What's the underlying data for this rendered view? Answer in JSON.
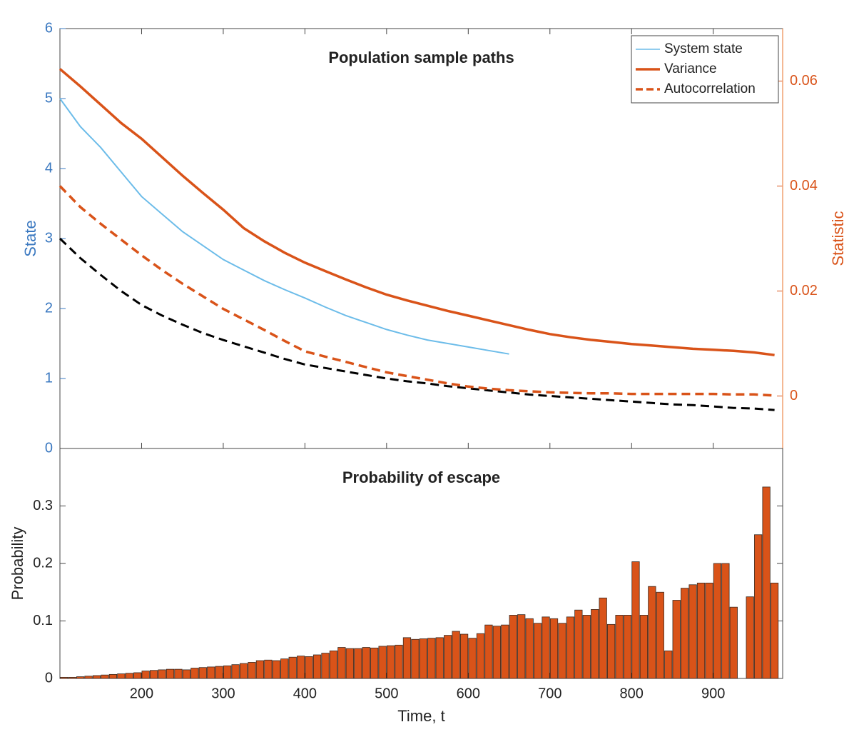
{
  "chart_data": [
    {
      "type": "line",
      "title": "Population sample paths",
      "ylabel": "State",
      "y2label": "Statistic",
      "x": [
        100,
        125,
        150,
        175,
        200,
        225,
        250,
        275,
        300,
        325,
        350,
        375,
        400,
        425,
        450,
        475,
        500,
        525,
        550,
        575,
        600,
        625,
        650,
        675,
        700,
        725,
        750,
        775,
        800,
        825,
        850,
        875,
        900,
        925,
        950,
        975
      ],
      "xlim": [
        100,
        985
      ],
      "ylim": [
        0,
        6
      ],
      "yticks": [
        0,
        1,
        2,
        3,
        4,
        5,
        6
      ],
      "y2lim": [
        -0.01,
        0.07
      ],
      "y2ticks": [
        0,
        0.02,
        0.04,
        0.06
      ],
      "legend": "upper right",
      "series": [
        {
          "name": "System state",
          "color": "#6cbce9",
          "axis": "y",
          "style": "solid",
          "values": [
            5.0,
            4.6,
            4.3,
            3.95,
            3.6,
            3.35,
            3.1,
            2.9,
            2.7,
            2.55,
            2.4,
            2.27,
            2.15,
            2.02,
            1.9,
            1.8,
            1.7,
            1.62,
            1.55,
            1.5,
            1.45,
            1.4,
            1.35,
            null,
            null,
            null,
            null,
            null,
            null,
            null,
            null,
            null,
            null,
            null,
            null,
            null
          ]
        },
        {
          "name": "Variance",
          "color": "#d95319",
          "axis": "y2",
          "style": "solid",
          "values": [
            0.0623,
            0.059,
            0.0555,
            0.052,
            0.049,
            0.0455,
            0.042,
            0.0387,
            0.0355,
            0.032,
            0.0295,
            0.0273,
            0.0254,
            0.0238,
            0.0222,
            0.0207,
            0.0193,
            0.0182,
            0.0172,
            0.0162,
            0.0153,
            0.0144,
            0.0135,
            0.0126,
            0.0118,
            0.0112,
            0.0107,
            0.0103,
            0.0099,
            0.0096,
            0.0093,
            0.009,
            0.0088,
            0.0086,
            0.0083,
            0.0078
          ]
        },
        {
          "name": "Autocorrelation",
          "color": "#d95319",
          "axis": "y2",
          "style": "dashed",
          "values": [
            0.04,
            0.036,
            0.0328,
            0.0298,
            0.0268,
            0.024,
            0.0214,
            0.019,
            0.0166,
            0.0146,
            0.0126,
            0.0105,
            0.0085,
            0.0075,
            0.0065,
            0.0055,
            0.0045,
            0.0038,
            0.0031,
            0.0024,
            0.0018,
            0.0014,
            0.0011,
            0.0009,
            0.0007,
            0.0006,
            0.0005,
            0.0005,
            0.0004,
            0.0004,
            0.0004,
            0.0004,
            0.0004,
            0.0003,
            0.0003,
            0.0001
          ]
        },
        {
          "color": "#000000",
          "axis": "y",
          "style": "dashed",
          "values": [
            3.0,
            2.72,
            2.48,
            2.25,
            2.05,
            1.9,
            1.77,
            1.65,
            1.55,
            1.46,
            1.37,
            1.28,
            1.2,
            1.15,
            1.1,
            1.05,
            1.0,
            0.96,
            0.93,
            0.89,
            0.86,
            0.83,
            0.8,
            0.77,
            0.75,
            0.73,
            0.71,
            0.69,
            0.67,
            0.65,
            0.63,
            0.62,
            0.6,
            0.58,
            0.57,
            0.55
          ]
        }
      ]
    },
    {
      "type": "histogram",
      "title": "Probability of escape",
      "xlabel": "Time, t",
      "ylabel": "Probability",
      "bins": [
        100,
        110,
        120,
        130,
        140,
        150,
        160,
        170,
        180,
        190,
        200,
        210,
        220,
        230,
        240,
        250,
        260,
        270,
        280,
        290,
        300,
        310,
        320,
        330,
        340,
        350,
        360,
        370,
        380,
        390,
        400,
        410,
        420,
        430,
        440,
        450,
        460,
        470,
        480,
        490,
        500,
        510,
        520,
        530,
        540,
        550,
        560,
        570,
        580,
        590,
        600,
        610,
        620,
        630,
        640,
        650,
        660,
        670,
        680,
        690,
        700,
        710,
        720,
        730,
        740,
        750,
        760,
        770,
        780,
        790,
        800,
        810,
        820,
        830,
        840,
        850,
        860,
        870,
        880,
        890,
        900,
        910,
        920,
        930,
        940,
        950,
        960,
        970,
        980
      ],
      "values": [
        0.002,
        0.002,
        0.003,
        0.004,
        0.005,
        0.006,
        0.007,
        0.008,
        0.009,
        0.01,
        0.013,
        0.014,
        0.015,
        0.016,
        0.016,
        0.015,
        0.018,
        0.019,
        0.02,
        0.021,
        0.022,
        0.024,
        0.026,
        0.028,
        0.031,
        0.032,
        0.031,
        0.034,
        0.037,
        0.039,
        0.038,
        0.041,
        0.044,
        0.048,
        0.054,
        0.052,
        0.052,
        0.054,
        0.053,
        0.056,
        0.057,
        0.058,
        0.071,
        0.068,
        0.069,
        0.07,
        0.071,
        0.075,
        0.082,
        0.077,
        0.07,
        0.078,
        0.093,
        0.091,
        0.093,
        0.11,
        0.111,
        0.104,
        0.096,
        0.107,
        0.104,
        0.096,
        0.107,
        0.119,
        0.11,
        0.12,
        0.14,
        0.094,
        0.11,
        0.11,
        0.203,
        0.11,
        0.16,
        0.15,
        0.048,
        0.136,
        0.157,
        0.163,
        0.166,
        0.166,
        0.2,
        0.2,
        0.124,
        0,
        0.142,
        0.25,
        0.333,
        0.166
      ],
      "color": "#d95319",
      "xlim": [
        100,
        985
      ],
      "xticks": [
        200,
        300,
        400,
        500,
        600,
        700,
        800,
        900
      ],
      "ylim": [
        0,
        0.4
      ],
      "yticks": [
        0,
        0.1,
        0.2,
        0.3
      ]
    }
  ]
}
